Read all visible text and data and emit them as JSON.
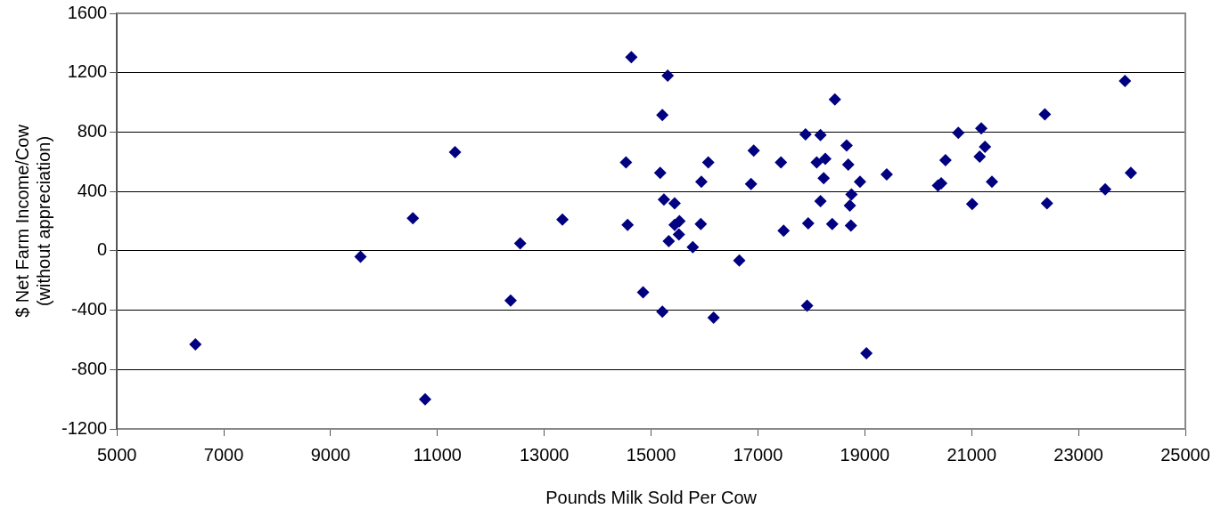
{
  "chart_data": {
    "type": "scatter",
    "xlabel": "Pounds Milk Sold Per Cow",
    "ylabel": "$ Net Farm Income/Cow (without appreciation)",
    "xlim": [
      5000,
      25000
    ],
    "xticks": [
      5000,
      7000,
      9000,
      11000,
      13000,
      15000,
      17000,
      19000,
      21000,
      23000,
      25000
    ],
    "ylim": [
      -1200,
      1600
    ],
    "yticks": [
      -1200,
      -800,
      -400,
      0,
      400,
      800,
      1200,
      1600
    ],
    "grid": "y",
    "legend": false,
    "marker": "diamond",
    "series": [
      {
        "color": "#000080",
        "x": [
          6470,
          9560,
          10540,
          11330,
          10770,
          14630,
          15310,
          15210,
          14530,
          15170,
          16070,
          15940,
          16920,
          16870,
          17430,
          17890,
          18170,
          18440,
          18100,
          18260,
          18230,
          18170,
          17940,
          18390,
          17480,
          16650,
          17920,
          16170,
          15210,
          14850,
          12370,
          12550,
          13340,
          14560,
          15240,
          15440,
          15530,
          15440,
          15520,
          15330,
          15930,
          15780,
          18660,
          18690,
          18910,
          19410,
          18750,
          18720,
          18740,
          19030,
          20370,
          20430,
          20510,
          20750,
          21180,
          21250,
          21150,
          21380,
          21010,
          22370,
          22410,
          23500,
          23870,
          23980
        ],
        "values": [
          -630,
          -40,
          220,
          665,
          -1000,
          1305,
          1180,
          915,
          595,
          525,
          595,
          465,
          675,
          450,
          595,
          785,
          780,
          1020,
          595,
          620,
          490,
          335,
          185,
          180,
          135,
          -65,
          -370,
          -450,
          -410,
          -280,
          -335,
          50,
          210,
          175,
          345,
          320,
          200,
          175,
          110,
          65,
          180,
          25,
          710,
          580,
          465,
          515,
          380,
          305,
          170,
          -690,
          440,
          455,
          610,
          795,
          825,
          700,
          635,
          465,
          315,
          920,
          320,
          415,
          1145,
          525
        ]
      }
    ]
  }
}
